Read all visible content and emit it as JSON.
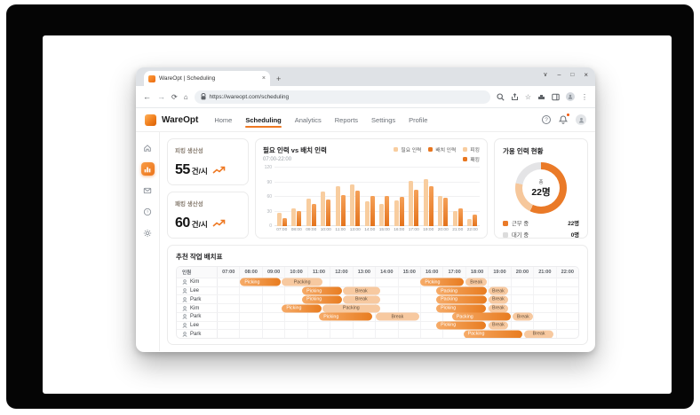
{
  "colors": {
    "accent": "#EE7822",
    "bar_required": "#F8CD9F",
    "bar_assigned": "#E8761F",
    "pill_light": "#F7C9A0",
    "working": "#EA7A28",
    "waiting": "#DCDCDC"
  },
  "browser": {
    "tab_title": "WareOpt | Scheduling",
    "url": "https://wareopt.com/scheduling"
  },
  "nav": {
    "brand": "WareOpt",
    "items": [
      {
        "label": "Home",
        "active": false
      },
      {
        "label": "Scheduling",
        "active": true
      },
      {
        "label": "Analytics",
        "active": false
      },
      {
        "label": "Reports",
        "active": false
      },
      {
        "label": "Settings",
        "active": false
      },
      {
        "label": "Profile",
        "active": false
      }
    ]
  },
  "sidebar": {
    "items": [
      "home",
      "bar-chart",
      "mail",
      "help",
      "settings"
    ],
    "active_index": 1
  },
  "metrics": [
    {
      "title": "피킹 생산성",
      "value": "55",
      "unit": "건/시"
    },
    {
      "title": "패킹 생산성",
      "value": "60",
      "unit": "건/시"
    }
  ],
  "chart_data": {
    "type": "bar",
    "title": "필요 인력 vs 배치 인력",
    "subtitle": "07:00-22:00",
    "categories": [
      "07:00",
      "08:00",
      "09:00",
      "10:00",
      "11:00",
      "13:00",
      "14:00",
      "15:00",
      "16:00",
      "17:00",
      "19:00",
      "20:00",
      "21:00",
      "22:00"
    ],
    "series": [
      {
        "name": "필요 인력",
        "values": [
          27,
          37,
          57,
          71,
          82,
          86,
          51,
          46,
          52,
          92,
          96,
          62,
          31,
          15
        ]
      },
      {
        "name": "배치 인력",
        "values": [
          16,
          31,
          46,
          54,
          64,
          72,
          62,
          62,
          60,
          75,
          81,
          59,
          36,
          23
        ]
      }
    ],
    "extra_legend": [
      {
        "label": "피킹",
        "color": "#F8CD9F"
      },
      {
        "label": "패킹",
        "color": "#E8761F"
      }
    ],
    "ylim": [
      0,
      120
    ],
    "yticks": [
      0,
      30,
      60,
      90,
      120
    ],
    "grid": true,
    "legend_position": "top-right"
  },
  "staff_panel": {
    "title": "가용 인력 현황",
    "center_label": "총",
    "center_value": "22명",
    "segments": [
      {
        "color": "#EA7A28",
        "percent": 57
      },
      {
        "color": "#F6C79B",
        "percent": 21
      },
      {
        "color": "#E4E4E6",
        "percent": 22
      }
    ],
    "legend": [
      {
        "label": "근무 중",
        "value": "22명",
        "color": "#EA7A28"
      },
      {
        "label": "대기 중",
        "value": "0명",
        "color": "#DCDCDC"
      }
    ]
  },
  "schedule": {
    "title": "추천 작업 배치표",
    "name_header": "인원",
    "hours": [
      "07:00",
      "08:00",
      "09:00",
      "10:00",
      "11:00",
      "12:00",
      "13:00",
      "14:00",
      "15:00",
      "16:00",
      "17:00",
      "18:00",
      "19:00",
      "20:00",
      "21:00",
      "22:00"
    ],
    "range": [
      7,
      23
    ],
    "rows": [
      {
        "name": "Kim",
        "tasks": [
          {
            "label": "Picking",
            "start": 8.0,
            "end": 9.8,
            "variant": "dark"
          },
          {
            "label": "Packing",
            "start": 9.85,
            "end": 11.65,
            "variant": "light"
          },
          {
            "label": "Picking",
            "start": 16.0,
            "end": 17.9,
            "variant": "dark"
          },
          {
            "label": "Break",
            "start": 18.0,
            "end": 18.95,
            "variant": "light"
          }
        ]
      },
      {
        "name": "Lee",
        "tasks": [
          {
            "label": "Picking",
            "start": 10.75,
            "end": 12.5,
            "variant": "dark"
          },
          {
            "label": "Break",
            "start": 12.55,
            "end": 14.2,
            "variant": "light"
          },
          {
            "label": "Packing",
            "start": 16.7,
            "end": 18.95,
            "variant": "dark"
          },
          {
            "label": "Break",
            "start": 19.0,
            "end": 19.9,
            "variant": "light"
          }
        ]
      },
      {
        "name": "Park",
        "tasks": [
          {
            "label": "Picking",
            "start": 10.75,
            "end": 12.5,
            "variant": "dark"
          },
          {
            "label": "Break",
            "start": 12.55,
            "end": 14.2,
            "variant": "light"
          },
          {
            "label": "Packing",
            "start": 16.7,
            "end": 18.95,
            "variant": "dark"
          },
          {
            "label": "Break",
            "start": 19.0,
            "end": 19.9,
            "variant": "light"
          }
        ]
      },
      {
        "name": "Kim",
        "tasks": [
          {
            "label": "Picking",
            "start": 9.85,
            "end": 11.6,
            "variant": "dark"
          },
          {
            "label": "Packing",
            "start": 11.65,
            "end": 14.2,
            "variant": "light"
          },
          {
            "label": "Picking",
            "start": 16.7,
            "end": 18.9,
            "variant": "dark"
          },
          {
            "label": "Break",
            "start": 19.0,
            "end": 19.9,
            "variant": "light"
          }
        ]
      },
      {
        "name": "Park",
        "tasks": [
          {
            "label": "Picking",
            "start": 11.5,
            "end": 13.85,
            "variant": "dark"
          },
          {
            "label": "Break",
            "start": 14.0,
            "end": 15.95,
            "variant": "light"
          },
          {
            "label": "Packing",
            "start": 17.4,
            "end": 20.0,
            "variant": "dark"
          },
          {
            "label": "Break",
            "start": 20.1,
            "end": 21.0,
            "variant": "light"
          }
        ]
      },
      {
        "name": "Lee",
        "tasks": [
          {
            "label": "Picking",
            "start": 16.7,
            "end": 18.9,
            "variant": "dark"
          },
          {
            "label": "Break",
            "start": 19.0,
            "end": 19.9,
            "variant": "light"
          }
        ]
      },
      {
        "name": "Park",
        "tasks": [
          {
            "label": "Packing",
            "start": 17.9,
            "end": 20.5,
            "variant": "dark"
          },
          {
            "label": "Break",
            "start": 20.6,
            "end": 21.9,
            "variant": "light"
          }
        ]
      }
    ]
  }
}
